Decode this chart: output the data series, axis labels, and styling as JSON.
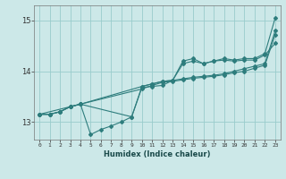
{
  "xlabel": "Humidex (Indice chaleur)",
  "background_color": "#cce8e8",
  "grid_color": "#99cccc",
  "line_color": "#2e7d7d",
  "xlim": [
    -0.5,
    23.5
  ],
  "ylim": [
    12.65,
    15.3
  ],
  "yticks": [
    13,
    14,
    15
  ],
  "line1_x": [
    0,
    1,
    2,
    3,
    4,
    10,
    11,
    12,
    13,
    14,
    15,
    16,
    17,
    18,
    19,
    20,
    21,
    22,
    23
  ],
  "line1_y": [
    13.15,
    13.15,
    13.2,
    13.3,
    13.35,
    13.7,
    13.75,
    13.8,
    13.82,
    13.85,
    13.88,
    13.9,
    13.92,
    13.95,
    14.0,
    14.05,
    14.1,
    14.15,
    14.8
  ],
  "line2_x": [
    0,
    1,
    2,
    3,
    4,
    5,
    6,
    7,
    8,
    9,
    10,
    11,
    12,
    13,
    14,
    15,
    16,
    17,
    18,
    19,
    20,
    21,
    22,
    23
  ],
  "line2_y": [
    13.15,
    13.15,
    13.2,
    13.3,
    13.35,
    12.75,
    12.85,
    12.92,
    13.0,
    13.1,
    13.7,
    13.75,
    13.8,
    13.82,
    14.2,
    14.25,
    14.15,
    14.2,
    14.25,
    14.22,
    14.25,
    14.25,
    14.35,
    15.05
  ],
  "line3_x": [
    0,
    1,
    2,
    3,
    4,
    10,
    11,
    12,
    13,
    14,
    15,
    16,
    17,
    18,
    19,
    20,
    21,
    22,
    23
  ],
  "line3_y": [
    13.15,
    13.15,
    13.2,
    13.3,
    13.35,
    13.65,
    13.72,
    13.78,
    13.8,
    13.83,
    13.86,
    13.88,
    13.9,
    13.93,
    13.97,
    14.0,
    14.06,
    14.12,
    14.72
  ],
  "line4_x": [
    0,
    3,
    4,
    9,
    10,
    11,
    12,
    13,
    14,
    15,
    16,
    17,
    18,
    19,
    20,
    21,
    22,
    23
  ],
  "line4_y": [
    13.15,
    13.3,
    13.35,
    13.1,
    13.68,
    13.7,
    13.72,
    13.82,
    14.15,
    14.2,
    14.15,
    14.2,
    14.22,
    14.2,
    14.22,
    14.22,
    14.32,
    14.55
  ]
}
